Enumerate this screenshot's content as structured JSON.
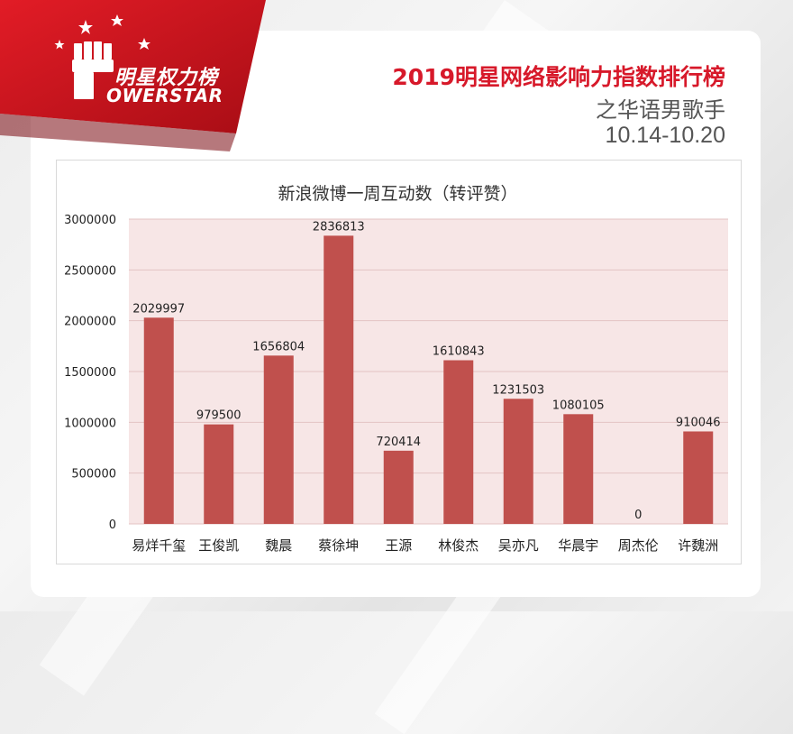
{
  "header": {
    "logo_text": "明星权力榜",
    "logo_sub": "OWERSTAR",
    "title": "2019明星网络影响力指数排行榜",
    "subtitle": "之华语男歌手",
    "date_range": "10.14-10.20"
  },
  "colors": {
    "accent": "#d7192a",
    "bar": "#c0504d",
    "plot_bg": "#f7e6e6"
  },
  "chart_data": {
    "type": "bar",
    "title": "新浪微博一周互动数（转评赞）",
    "categories": [
      "易烊千玺",
      "王俊凯",
      "魏晨",
      "蔡徐坤",
      "王源",
      "林俊杰",
      "吴亦凡",
      "华晨宇",
      "周杰伦",
      "许魏洲"
    ],
    "values": [
      2029997,
      979500,
      1656804,
      2836813,
      720414,
      1610843,
      1231503,
      1080105,
      0,
      910046
    ],
    "value_labels": [
      "2029997",
      "979500",
      "1656804",
      "2836813",
      "720414",
      "1610843",
      "1231503",
      "1080105",
      "0",
      "910046"
    ],
    "y_ticks": [
      0,
      500000,
      1000000,
      1500000,
      2000000,
      2500000,
      3000000
    ],
    "y_tick_labels": [
      "0",
      "500000",
      "1000000",
      "1500000",
      "2000000",
      "2500000",
      "3000000"
    ],
    "ylim": [
      0,
      3000000
    ],
    "xlabel": "",
    "ylabel": "",
    "grid": true,
    "legend": "none"
  }
}
